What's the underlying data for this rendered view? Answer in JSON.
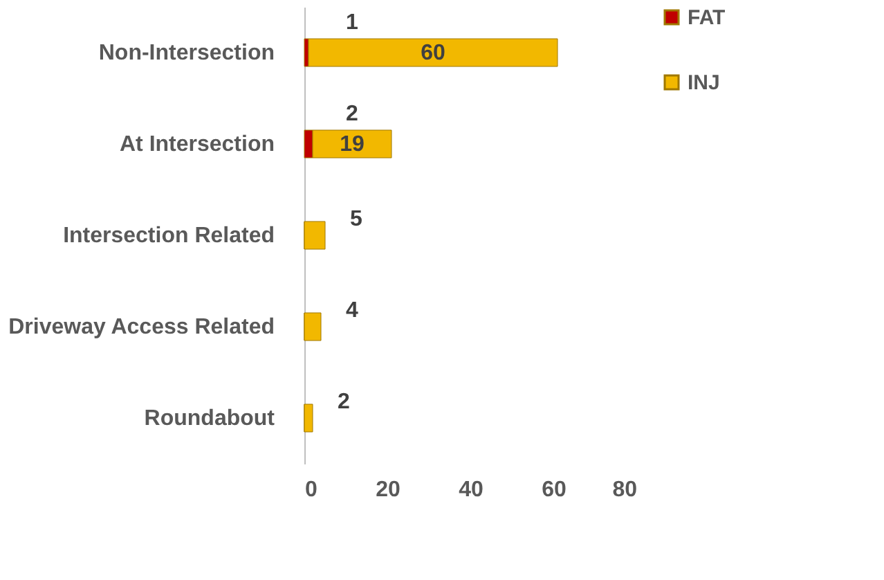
{
  "chart_data": {
    "type": "bar",
    "orientation": "horizontal",
    "stacked": true,
    "categories": [
      "Non-Intersection",
      "At Intersection",
      "Intersection Related",
      "Driveway Access Related",
      "Roundabout"
    ],
    "series": [
      {
        "name": "FAT",
        "color": "#c00000",
        "values": [
          1,
          2,
          0,
          0,
          0
        ],
        "value_labels": [
          "1",
          "2",
          null,
          null,
          null
        ]
      },
      {
        "name": "INJ",
        "color": "#f2b800",
        "values": [
          60,
          19,
          5,
          4,
          2
        ],
        "value_labels": [
          "60",
          "19",
          "5",
          "4",
          "2"
        ]
      }
    ],
    "xlim": [
      0,
      80
    ],
    "xticks": [
      0,
      20,
      40,
      60,
      80
    ],
    "grid": false,
    "legend": "right"
  }
}
